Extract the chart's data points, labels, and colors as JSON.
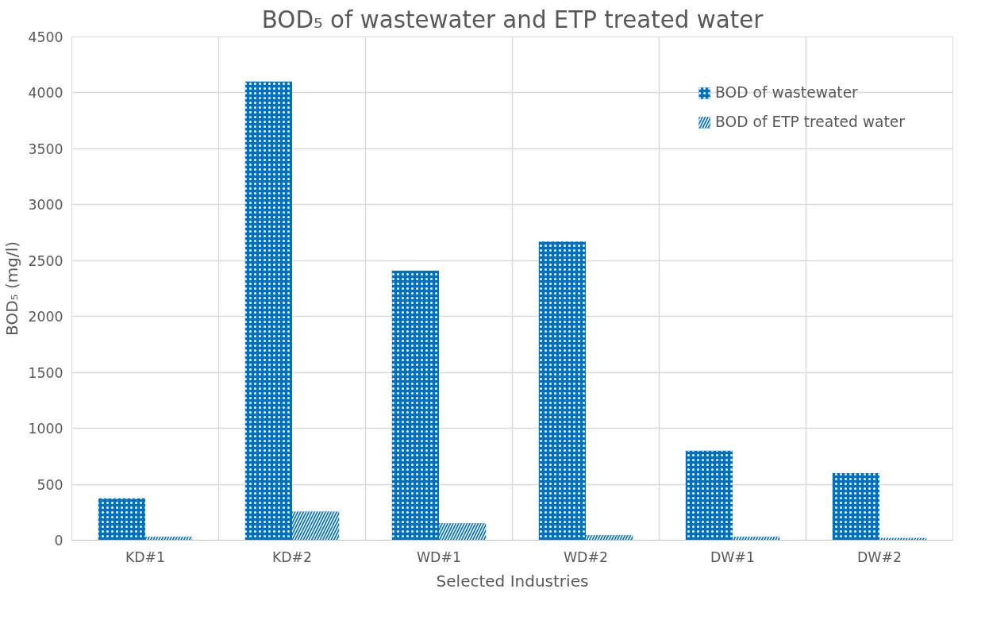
{
  "chart_data": {
    "type": "bar",
    "title": "BOD₅ of wastewater and ETP treated water",
    "xlabel": "Selected Industries",
    "ylabel": "BOD₅ (mg/l)",
    "categories": [
      "KD#1",
      "KD#2",
      "WD#1",
      "WD#2",
      "DW#1",
      "DW#2"
    ],
    "series": [
      {
        "name": "BOD of wastewater",
        "color": "#0070c0",
        "values": [
          375,
          4100,
          2410,
          2670,
          800,
          600
        ]
      },
      {
        "name": "BOD of ETP treated water",
        "color": "#0070c0",
        "values": [
          30,
          255,
          150,
          45,
          30,
          20
        ]
      }
    ],
    "ylim": [
      0,
      4500
    ],
    "yticks": [
      0,
      500,
      1000,
      1500,
      2000,
      2500,
      3000,
      3500,
      4000,
      4500
    ],
    "grid": true,
    "legend": "top right"
  }
}
